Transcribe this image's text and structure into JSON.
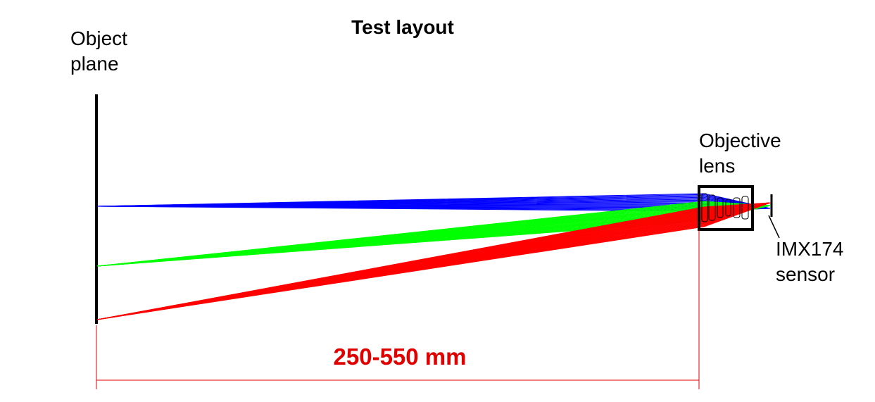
{
  "title": "Test layout",
  "labels": {
    "object_plane_line1": "Object",
    "object_plane_line2": "plane",
    "objective_lens_line1": "Objective",
    "objective_lens_line2": "lens",
    "sensor_line1": "IMX174",
    "sensor_line2": "sensor"
  },
  "dimension": {
    "text": "250-550 mm"
  },
  "colors": {
    "field_1": "#0000ff",
    "field_2": "#00ff00",
    "field_3": "#ff0000",
    "dimension": "#e00000",
    "structure": "#000000"
  },
  "ray_fields": [
    {
      "name": "blue",
      "color": "#0000ff",
      "rays": 20
    },
    {
      "name": "green",
      "color": "#00ff00",
      "rays": 28
    },
    {
      "name": "red",
      "color": "#ff0000",
      "rays": 34
    }
  ]
}
